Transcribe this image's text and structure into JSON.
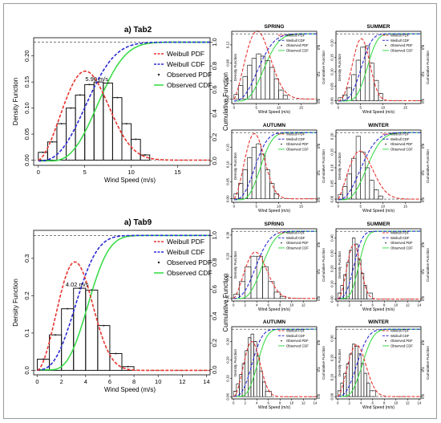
{
  "colors": {
    "weibull_pdf": "#e8332e",
    "weibull_cdf": "#2b2bd6",
    "observed_pdf": "#202020",
    "observed_cdf": "#3ddc4a",
    "bars": "#111111"
  },
  "legend_labels": [
    "Weibull PDF",
    "Weibull CDF",
    "Observed PDF",
    "Observed CDF"
  ],
  "chart_data": [
    {
      "type": "bar",
      "title": "a) Tab2",
      "xlabel": "Wind Speed (m/s)",
      "ylabel": "Density Function",
      "y2label": "Cumulative Function",
      "xlim": [
        -0.5,
        18.5
      ],
      "xticks": [
        0,
        5,
        10,
        15
      ],
      "ylim": [
        -0.01,
        0.235
      ],
      "yticks": [
        0.0,
        0.05,
        0.1,
        0.15,
        0.2
      ],
      "y2ticks": [
        0.0,
        0.2,
        0.4,
        0.6,
        0.8,
        1.0
      ],
      "weibull": {
        "k": 2.6,
        "c": 6.1
      },
      "obs_cdf_shift": 1.2,
      "bins": [
        {
          "x0": 0,
          "x1": 1,
          "v": 0.015
        },
        {
          "x0": 1,
          "x1": 2,
          "v": 0.035
        },
        {
          "x0": 2,
          "x1": 3,
          "v": 0.07
        },
        {
          "x0": 3,
          "x1": 4,
          "v": 0.1
        },
        {
          "x0": 4,
          "x1": 5,
          "v": 0.125
        },
        {
          "x0": 5,
          "x1": 6,
          "v": 0.145
        },
        {
          "x0": 6,
          "x1": 7,
          "v": 0.15
        },
        {
          "x0": 7,
          "x1": 8,
          "v": 0.148
        },
        {
          "x0": 8,
          "x1": 9,
          "v": 0.12
        },
        {
          "x0": 9,
          "x1": 10,
          "v": 0.07
        },
        {
          "x0": 10,
          "x1": 11,
          "v": 0.04
        },
        {
          "x0": 11,
          "x1": 12,
          "v": 0.01
        }
      ],
      "peak_label": {
        "text": "5.90 m/s",
        "x": 6.3,
        "y": 0.152
      }
    },
    {
      "type": "bar",
      "title": "a) Tab9",
      "xlabel": "Wind Speed (m/s)",
      "ylabel": "Density Function",
      "y2label": "Cumulative Function",
      "xlim": [
        -0.3,
        14.3
      ],
      "xticks": [
        0,
        2,
        4,
        6,
        8,
        10,
        12,
        14
      ],
      "ylim": [
        -0.012,
        0.375
      ],
      "yticks": [
        0.0,
        0.1,
        0.2,
        0.3
      ],
      "y2ticks": [
        0.0,
        0.2,
        0.4,
        0.6,
        0.8,
        1.0
      ],
      "weibull": {
        "k": 2.7,
        "c": 3.7
      },
      "obs_cdf_shift": 1.0,
      "bins": [
        {
          "x0": 0,
          "x1": 1,
          "v": 0.03
        },
        {
          "x0": 1,
          "x1": 2,
          "v": 0.095
        },
        {
          "x0": 2,
          "x1": 3,
          "v": 0.165
        },
        {
          "x0": 3,
          "x1": 4,
          "v": 0.22
        },
        {
          "x0": 4,
          "x1": 5,
          "v": 0.215
        },
        {
          "x0": 5,
          "x1": 6,
          "v": 0.12
        },
        {
          "x0": 6,
          "x1": 7,
          "v": 0.045
        },
        {
          "x0": 7,
          "x1": 8,
          "v": 0.01
        }
      ],
      "peak_label": {
        "text": "4.02 m/s",
        "x": 3.3,
        "y": 0.225
      }
    },
    {
      "type": "bar",
      "title": "SPRING",
      "xlabel": "Wind Speed (m/s)",
      "ylabel": "Density Function",
      "y2label": "Cumulative Function",
      "xlim": [
        -0.5,
        18.5
      ],
      "xticks": [
        0,
        5,
        10,
        15
      ],
      "ylim": [
        -0.01,
        0.15
      ],
      "yticks": [
        0.0,
        0.04,
        0.08,
        0.12
      ],
      "y2ticks": [
        0.0,
        0.4,
        0.8
      ],
      "weibull": {
        "k": 2.4,
        "c": 6.5
      },
      "obs_cdf_shift": 1.2,
      "bins": [
        {
          "x0": 0,
          "x1": 1,
          "v": 0.01
        },
        {
          "x0": 1,
          "x1": 2,
          "v": 0.03
        },
        {
          "x0": 2,
          "x1": 3,
          "v": 0.05
        },
        {
          "x0": 3,
          "x1": 4,
          "v": 0.075
        },
        {
          "x0": 4,
          "x1": 5,
          "v": 0.09
        },
        {
          "x0": 5,
          "x1": 6,
          "v": 0.1
        },
        {
          "x0": 6,
          "x1": 7,
          "v": 0.095
        },
        {
          "x0": 7,
          "x1": 8,
          "v": 0.085
        },
        {
          "x0": 8,
          "x1": 9,
          "v": 0.07
        },
        {
          "x0": 9,
          "x1": 10,
          "v": 0.045
        },
        {
          "x0": 10,
          "x1": 11,
          "v": 0.02
        },
        {
          "x0": 11,
          "x1": 12,
          "v": 0.008
        }
      ]
    },
    {
      "type": "bar",
      "title": "SUMMER",
      "xlabel": "Wind Speed (m/s)",
      "ylabel": "Density Function",
      "y2label": "Cumulative Function",
      "xlim": [
        -0.5,
        18.5
      ],
      "xticks": [
        0,
        5,
        10,
        15
      ],
      "ylim": [
        -0.01,
        0.24
      ],
      "yticks": [
        0.0,
        0.05,
        0.1,
        0.15,
        0.2
      ],
      "y2ticks": [
        0.0,
        0.4,
        0.8
      ],
      "weibull": {
        "k": 3.2,
        "c": 5.8
      },
      "obs_cdf_shift": 1.3,
      "bins": [
        {
          "x0": 0,
          "x1": 1,
          "v": 0.01
        },
        {
          "x0": 1,
          "x1": 2,
          "v": 0.02
        },
        {
          "x0": 2,
          "x1": 3,
          "v": 0.045
        },
        {
          "x0": 3,
          "x1": 4,
          "v": 0.09
        },
        {
          "x0": 4,
          "x1": 5,
          "v": 0.14
        },
        {
          "x0": 5,
          "x1": 6,
          "v": 0.185
        },
        {
          "x0": 6,
          "x1": 7,
          "v": 0.19
        },
        {
          "x0": 7,
          "x1": 8,
          "v": 0.13
        },
        {
          "x0": 8,
          "x1": 9,
          "v": 0.07
        },
        {
          "x0": 9,
          "x1": 10,
          "v": 0.025
        }
      ]
    },
    {
      "type": "bar",
      "title": "AUTUMN",
      "xlabel": "Wind Speed (m/s)",
      "ylabel": "Density Function",
      "y2label": "Cumulative Function",
      "xlim": [
        -0.5,
        18.5
      ],
      "xticks": [
        0,
        5,
        10,
        15
      ],
      "ylim": [
        -0.01,
        0.2
      ],
      "yticks": [
        0.0,
        0.05,
        0.1,
        0.15
      ],
      "y2ticks": [
        0.0,
        0.4,
        0.8
      ],
      "weibull": {
        "k": 2.6,
        "c": 5.5
      },
      "obs_cdf_shift": 1.2,
      "bins": [
        {
          "x0": 0,
          "x1": 1,
          "v": 0.015
        },
        {
          "x0": 1,
          "x1": 2,
          "v": 0.045
        },
        {
          "x0": 2,
          "x1": 3,
          "v": 0.085
        },
        {
          "x0": 3,
          "x1": 4,
          "v": 0.12
        },
        {
          "x0": 4,
          "x1": 5,
          "v": 0.15
        },
        {
          "x0": 5,
          "x1": 6,
          "v": 0.16
        },
        {
          "x0": 6,
          "x1": 7,
          "v": 0.13
        },
        {
          "x0": 7,
          "x1": 8,
          "v": 0.085
        },
        {
          "x0": 8,
          "x1": 9,
          "v": 0.045
        },
        {
          "x0": 9,
          "x1": 10,
          "v": 0.015
        }
      ]
    },
    {
      "type": "bar",
      "title": "WINTER",
      "xlabel": "Wind Speed (m/s)",
      "ylabel": "Density Function",
      "y2label": "Cumulative Function",
      "xlim": [
        -0.5,
        18.5
      ],
      "xticks": [
        0,
        5,
        10,
        15
      ],
      "ylim": [
        -0.01,
        0.22
      ],
      "yticks": [
        0.0,
        0.05,
        0.1,
        0.15,
        0.2
      ],
      "y2ticks": [
        0.0,
        0.4,
        0.8
      ],
      "weibull": {
        "k": 2.3,
        "c": 6.2
      },
      "obs_cdf_shift": 1.2,
      "bins": [
        {
          "x0": 0,
          "x1": 1,
          "v": 0.015
        },
        {
          "x0": 1,
          "x1": 2,
          "v": 0.04
        },
        {
          "x0": 2,
          "x1": 3,
          "v": 0.08
        },
        {
          "x0": 3,
          "x1": 4,
          "v": 0.13
        },
        {
          "x0": 4,
          "x1": 5,
          "v": 0.2
        },
        {
          "x0": 5,
          "x1": 6,
          "v": 0.15
        },
        {
          "x0": 6,
          "x1": 7,
          "v": 0.1
        },
        {
          "x0": 7,
          "x1": 8,
          "v": 0.06
        },
        {
          "x0": 8,
          "x1": 9,
          "v": 0.03
        },
        {
          "x0": 9,
          "x1": 10,
          "v": 0.01
        }
      ]
    },
    {
      "type": "bar",
      "title": "SPRING",
      "xlabel": "Wind Speed (m/s)",
      "ylabel": "Density Function",
      "y2label": "Cumulative Function",
      "xlim": [
        -0.3,
        14.3
      ],
      "xticks": [
        0,
        2,
        4,
        6,
        8,
        10,
        12
      ],
      "ylim": [
        -0.012,
        0.33
      ],
      "yticks": [
        0.0,
        0.1,
        0.2,
        0.3
      ],
      "y2ticks": [
        0.0,
        0.4,
        0.8
      ],
      "weibull": {
        "k": 2.5,
        "c": 4.6
      },
      "obs_cdf_shift": 1.0,
      "bins": [
        {
          "x0": 0,
          "x1": 1,
          "v": 0.02
        },
        {
          "x0": 1,
          "x1": 2,
          "v": 0.08
        },
        {
          "x0": 2,
          "x1": 3,
          "v": 0.15
        },
        {
          "x0": 3,
          "x1": 4,
          "v": 0.2
        },
        {
          "x0": 4,
          "x1": 5,
          "v": 0.2
        },
        {
          "x0": 5,
          "x1": 6,
          "v": 0.15
        },
        {
          "x0": 6,
          "x1": 7,
          "v": 0.08
        },
        {
          "x0": 7,
          "x1": 8,
          "v": 0.03
        },
        {
          "x0": 8,
          "x1": 9,
          "v": 0.01
        }
      ]
    },
    {
      "type": "bar",
      "title": "SUMMER",
      "xlabel": "Wind Speed (m/s)",
      "ylabel": "Density Function",
      "y2label": "Cumulative Function",
      "xlim": [
        -0.3,
        14.3
      ],
      "xticks": [
        0,
        2,
        4,
        6,
        8,
        10,
        12,
        14
      ],
      "ylim": [
        -0.012,
        0.46
      ],
      "yticks": [
        0.0,
        0.1,
        0.2,
        0.3,
        0.4
      ],
      "y2ticks": [
        0.0,
        0.4,
        0.8
      ],
      "weibull": {
        "k": 2.9,
        "c": 3.2
      },
      "obs_cdf_shift": 0.8,
      "bins": [
        {
          "x0": 0,
          "x1": 0.5,
          "v": 0.04
        },
        {
          "x0": 0.5,
          "x1": 1,
          "v": 0.09
        },
        {
          "x0": 1,
          "x1": 1.5,
          "v": 0.16
        },
        {
          "x0": 1.5,
          "x1": 2,
          "v": 0.24
        },
        {
          "x0": 2,
          "x1": 2.5,
          "v": 0.32
        },
        {
          "x0": 2.5,
          "x1": 3,
          "v": 0.4
        },
        {
          "x0": 3,
          "x1": 3.5,
          "v": 0.36
        },
        {
          "x0": 3.5,
          "x1": 4,
          "v": 0.26
        },
        {
          "x0": 4,
          "x1": 4.5,
          "v": 0.17
        },
        {
          "x0": 4.5,
          "x1": 5,
          "v": 0.09
        },
        {
          "x0": 5,
          "x1": 6,
          "v": 0.04
        }
      ]
    },
    {
      "type": "bar",
      "title": "AUTUMN",
      "xlabel": "Wind Speed (m/s)",
      "ylabel": "Density Function",
      "y2label": "Cumulative Function",
      "xlim": [
        -0.3,
        14.3
      ],
      "xticks": [
        0,
        2,
        4,
        6,
        8,
        10,
        12,
        14
      ],
      "ylim": [
        -0.012,
        0.38
      ],
      "yticks": [
        0.0,
        0.1,
        0.2,
        0.3
      ],
      "y2ticks": [
        0.0,
        0.4,
        0.8
      ],
      "weibull": {
        "k": 2.8,
        "c": 3.7
      },
      "obs_cdf_shift": 0.9,
      "bins": [
        {
          "x0": 0,
          "x1": 0.5,
          "v": 0.03
        },
        {
          "x0": 0.5,
          "x1": 1,
          "v": 0.07
        },
        {
          "x0": 1,
          "x1": 1.5,
          "v": 0.12
        },
        {
          "x0": 1.5,
          "x1": 2,
          "v": 0.18
        },
        {
          "x0": 2,
          "x1": 2.5,
          "v": 0.25
        },
        {
          "x0": 2.5,
          "x1": 3,
          "v": 0.32
        },
        {
          "x0": 3,
          "x1": 3.5,
          "v": 0.34
        },
        {
          "x0": 3.5,
          "x1": 4,
          "v": 0.3
        },
        {
          "x0": 4,
          "x1": 4.5,
          "v": 0.22
        },
        {
          "x0": 4.5,
          "x1": 5,
          "v": 0.14
        },
        {
          "x0": 5,
          "x1": 5.5,
          "v": 0.08
        },
        {
          "x0": 5.5,
          "x1": 6.5,
          "v": 0.03
        }
      ]
    },
    {
      "type": "bar",
      "title": "WINTER",
      "xlabel": "Wind Speed (m/s)",
      "ylabel": "Density Function",
      "y2label": "Cumulative Function",
      "xlim": [
        -0.3,
        14.3
      ],
      "xticks": [
        0,
        2,
        4,
        6,
        8,
        10,
        12,
        14
      ],
      "ylim": [
        -0.012,
        0.36
      ],
      "yticks": [
        0.0,
        0.1,
        0.2,
        0.3
      ],
      "y2ticks": [
        0.0,
        0.4,
        0.8
      ],
      "weibull": {
        "k": 2.6,
        "c": 3.9
      },
      "obs_cdf_shift": 0.9,
      "bins": [
        {
          "x0": 0,
          "x1": 0.5,
          "v": 0.03
        },
        {
          "x0": 0.5,
          "x1": 1,
          "v": 0.07
        },
        {
          "x0": 1,
          "x1": 1.5,
          "v": 0.12
        },
        {
          "x0": 1.5,
          "x1": 2,
          "v": 0.17
        },
        {
          "x0": 2,
          "x1": 2.5,
          "v": 0.22
        },
        {
          "x0": 2.5,
          "x1": 3,
          "v": 0.27
        },
        {
          "x0": 3,
          "x1": 3.5,
          "v": 0.26
        },
        {
          "x0": 3.5,
          "x1": 4,
          "v": 0.22
        },
        {
          "x0": 4,
          "x1": 4.5,
          "v": 0.17
        },
        {
          "x0": 4.5,
          "x1": 5,
          "v": 0.12
        },
        {
          "x0": 5,
          "x1": 5.5,
          "v": 0.07
        },
        {
          "x0": 5.5,
          "x1": 6.5,
          "v": 0.03
        }
      ]
    }
  ]
}
